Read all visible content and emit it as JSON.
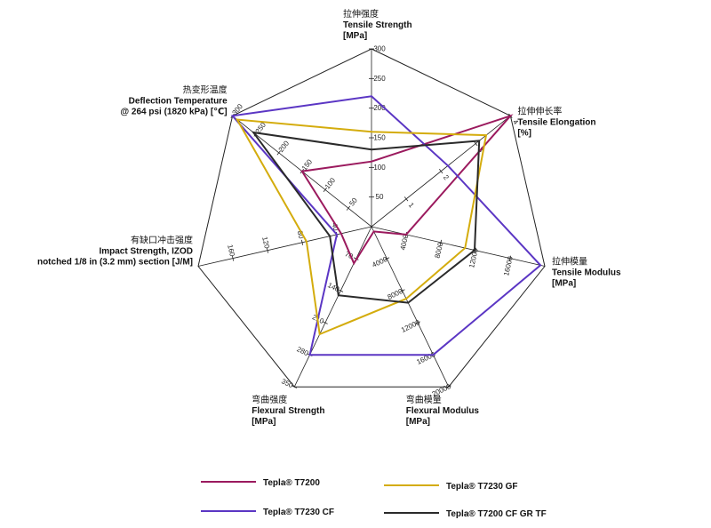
{
  "chart_data": {
    "type": "radar",
    "axes": [
      {
        "lines": [
          "拉伸强度",
          "Tensile Strength",
          "[MPa]"
        ],
        "max": 300,
        "ticks": [
          "50",
          "100",
          "150",
          "200",
          "250",
          "300"
        ]
      },
      {
        "lines": [
          "拉伸伸长率",
          "Tensile Elongation",
          "[%]"
        ],
        "max": 4,
        "ticks": [
          "1",
          "2",
          "3",
          "4"
        ]
      },
      {
        "lines": [
          "拉伸模量",
          "Tensile Modulus",
          "[MPa]"
        ],
        "max": 20000,
        "ticks": [
          "4000",
          "8000",
          "12000",
          "16000"
        ]
      },
      {
        "lines": [
          "弯曲模量",
          "Flexural Modulus",
          "[MPa]"
        ],
        "max": 20000,
        "ticks": [
          "4000",
          "8000",
          "12000",
          "16000",
          "20000"
        ]
      },
      {
        "lines": [
          "弯曲强度",
          "Flexural Strength",
          "[MPa]"
        ],
        "max": 350,
        "ticks": [
          "70",
          "140",
          "210",
          "280",
          "350"
        ]
      },
      {
        "lines": [
          "有缺口冲击强度",
          "Impact Strength, IZOD",
          "notched 1/8 in (3.2 mm) section [J/M]"
        ],
        "max": 200,
        "ticks": [
          "40",
          "80",
          "120",
          "160"
        ]
      },
      {
        "lines": [
          "热变形温度",
          "Deflection Temperature",
          "@ 264 psi (1820 kPa) [℃]"
        ],
        "max": 300,
        "ticks": [
          "50",
          "100",
          "150",
          "200",
          "250",
          "300"
        ]
      }
    ],
    "series": [
      {
        "name": "Tepla® T7200",
        "color": "#9b1a5e",
        "values": [
          110,
          4.0,
          4000,
          600,
          80,
          35,
          150
        ]
      },
      {
        "name": "Tepla® T7230 CF",
        "color": "#5b36c4",
        "values": [
          220,
          2.2,
          19500,
          16000,
          280,
          40,
          300
        ]
      },
      {
        "name": "Tepla® T7230 GF",
        "color": "#d4ac0d",
        "values": [
          160,
          3.3,
          10800,
          9000,
          235,
          75,
          290
        ]
      },
      {
        "name": "Tepla® T7200 CF GR TF",
        "color": "#2a2a2a",
        "values": [
          130,
          3.1,
          11900,
          9500,
          150,
          48,
          255
        ]
      }
    ]
  }
}
